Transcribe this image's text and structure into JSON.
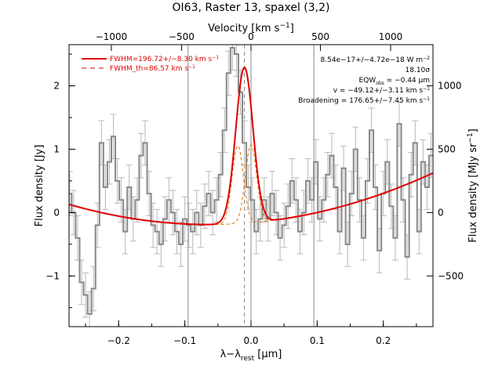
{
  "chart_data": {
    "type": "line",
    "title": "OI63, Raster 13, spaxel (3,2)",
    "xlabel": "λ−λ",
    "xlabel_sub": "rest",
    "xlabel_unit": " [μm]",
    "ylabel": "Flux density [Jy]",
    "top_xlabel": "Velocity [km s",
    "top_xlabel_sup": "−1",
    "top_xlabel_end": "]",
    "right_ylabel": "Flux density [MJy sr",
    "right_ylabel_sup": "−1",
    "right_ylabel_end": "]",
    "xlim": [
      -0.275,
      0.275
    ],
    "ylim": [
      -1.8,
      2.65
    ],
    "x_ticks": [
      -0.2,
      -0.1,
      0.0,
      0.1,
      0.2
    ],
    "x_tick_labels": [
      "−0.2",
      "−0.1",
      "0.0",
      "0.1",
      "0.2"
    ],
    "y_ticks": [
      -1,
      0,
      1,
      2
    ],
    "y_tick_labels": [
      "−1",
      "0",
      "1",
      "2"
    ],
    "top_ticks": [
      -1000,
      -500,
      0,
      500,
      1000
    ],
    "top_tick_labels": [
      "−1000",
      "−500",
      "0",
      "500",
      "1000"
    ],
    "top_tick_x": [
      -0.211,
      -0.105,
      0.0,
      0.105,
      0.211
    ],
    "right_ticks": [
      -500,
      0,
      500,
      1000
    ],
    "right_tick_labels": [
      "−500",
      "0",
      "500",
      "1000"
    ],
    "right_tick_y": [
      -1.0,
      0.0,
      1.0,
      2.0
    ],
    "vlines": [
      -0.095,
      0.0,
      0.095
    ],
    "center_dashed": -0.01,
    "annotations": [
      "8.54e−17+/−4.72e−18 W m",
      "18.10σ",
      "EQW",
      "v = −49.12+/−3.11 km s",
      "Broadening = 176.65+/−7.45 km s"
    ],
    "annotation_parts": {
      "flux_sup": "−2",
      "eqw_sub": "obs",
      "eqw_end": " = −0.44 μm",
      "kms_sup": "−1"
    },
    "legend": [
      {
        "name": "FWHM=196.72+/−8.30 km s",
        "sup": "−1",
        "style": "solid"
      },
      {
        "name": "FWHM_th=86.57 km s",
        "sup": "−1",
        "style": "dashed"
      }
    ],
    "colors": {
      "data": "#888888",
      "error": "#b8b8b8",
      "fit": "#e00000",
      "gauss_components": "#e07000",
      "vline": "#888888",
      "axis": "#000000"
    },
    "fit_model": {
      "baseline_c0": -0.16,
      "baseline_c1": 0.9,
      "baseline_c2": 7.1,
      "peak_amp": 2.46,
      "peak_center": -0.01,
      "peak_sigma": 0.013,
      "component_amp": 1.23,
      "component_sigma": 0.0085,
      "component_offset": 0.01
    },
    "spectrum": {
      "x": [
        -0.274,
        -0.268,
        -0.262,
        -0.256,
        -0.25,
        -0.244,
        -0.238,
        -0.232,
        -0.226,
        -0.22,
        -0.214,
        -0.208,
        -0.202,
        -0.196,
        -0.19,
        -0.184,
        -0.178,
        -0.172,
        -0.166,
        -0.16,
        -0.154,
        -0.148,
        -0.142,
        -0.136,
        -0.13,
        -0.124,
        -0.118,
        -0.112,
        -0.106,
        -0.1,
        -0.094,
        -0.088,
        -0.082,
        -0.076,
        -0.07,
        -0.064,
        -0.058,
        -0.052,
        -0.046,
        -0.04,
        -0.034,
        -0.028,
        -0.022,
        -0.016,
        -0.01,
        -0.004,
        0.002,
        0.008,
        0.014,
        0.02,
        0.026,
        0.032,
        0.038,
        0.044,
        0.05,
        0.056,
        0.062,
        0.068,
        0.074,
        0.08,
        0.086,
        0.092,
        0.098,
        0.104,
        0.11,
        0.116,
        0.122,
        0.128,
        0.134,
        0.14,
        0.146,
        0.152,
        0.158,
        0.164,
        0.17,
        0.176,
        0.182,
        0.188,
        0.194,
        0.2,
        0.206,
        0.212,
        0.218,
        0.224,
        0.23,
        0.236,
        0.242,
        0.248,
        0.254,
        0.26,
        0.266,
        0.272
      ],
      "y": [
        0.3,
        0.0,
        -0.4,
        -1.1,
        -1.3,
        -1.6,
        -1.2,
        -0.2,
        1.1,
        0.4,
        0.8,
        1.2,
        0.5,
        0.2,
        -0.3,
        0.4,
        -0.1,
        0.2,
        0.9,
        1.1,
        0.3,
        -0.2,
        -0.3,
        -0.5,
        -0.1,
        0.2,
        0.0,
        -0.3,
        -0.5,
        -0.1,
        -0.2,
        -0.3,
        0.0,
        -0.2,
        0.1,
        0.3,
        0.0,
        0.2,
        0.6,
        1.3,
        2.2,
        2.6,
        2.5,
        1.9,
        1.1,
        0.4,
        0.2,
        -0.3,
        -0.1,
        0.2,
        -0.1,
        0.3,
        0.0,
        -0.4,
        -0.2,
        0.1,
        0.5,
        0.2,
        -0.3,
        0.0,
        0.5,
        0.2,
        0.8,
        -0.1,
        0.2,
        0.6,
        0.9,
        0.4,
        -0.3,
        0.7,
        -0.5,
        0.3,
        1.0,
        0.2,
        -0.4,
        0.5,
        1.3,
        0.4,
        -0.6,
        0.3,
        0.8,
        0.1,
        -0.4,
        1.4,
        0.2,
        -0.7,
        0.6,
        1.1,
        -0.3,
        0.8,
        0.4,
        0.9
      ],
      "err": 0.35
    }
  }
}
